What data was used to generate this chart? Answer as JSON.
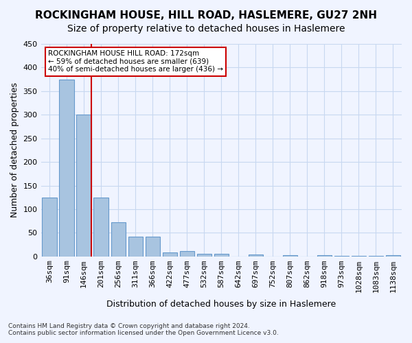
{
  "title": "ROCKINGHAM HOUSE, HILL ROAD, HASLEMERE, GU27 2NH",
  "subtitle": "Size of property relative to detached houses in Haslemere",
  "xlabel": "Distribution of detached houses by size in Haslemere",
  "ylabel": "Number of detached properties",
  "categories": [
    "36sqm",
    "91sqm",
    "146sqm",
    "201sqm",
    "256sqm",
    "311sqm",
    "366sqm",
    "422sqm",
    "477sqm",
    "532sqm",
    "587sqm",
    "642sqm",
    "697sqm",
    "752sqm",
    "807sqm",
    "862sqm",
    "918sqm",
    "973sqm",
    "1028sqm",
    "1083sqm",
    "1138sqm"
  ],
  "values": [
    125,
    375,
    300,
    125,
    72,
    42,
    42,
    9,
    11,
    6,
    6,
    0,
    4,
    0,
    3,
    0,
    2,
    1,
    1,
    1,
    3
  ],
  "bar_color": "#a8c4e0",
  "bar_edge_color": "#6699cc",
  "vline_x": 2,
  "vline_color": "#cc0000",
  "annotation_title": "ROCKINGHAM HOUSE HILL ROAD: 172sqm",
  "annotation_line1": "← 59% of detached houses are smaller (639)",
  "annotation_line2": "40% of semi-detached houses are larger (436) →",
  "annotation_box_color": "#cc0000",
  "footer_line1": "Contains HM Land Registry data © Crown copyright and database right 2024.",
  "footer_line2": "Contains public sector information licensed under the Open Government Licence v3.0.",
  "ylim": [
    0,
    450
  ],
  "background_color": "#f0f4ff",
  "grid_color": "#c8d8f0",
  "title_fontsize": 11,
  "subtitle_fontsize": 10,
  "axis_fontsize": 9,
  "tick_fontsize": 8
}
